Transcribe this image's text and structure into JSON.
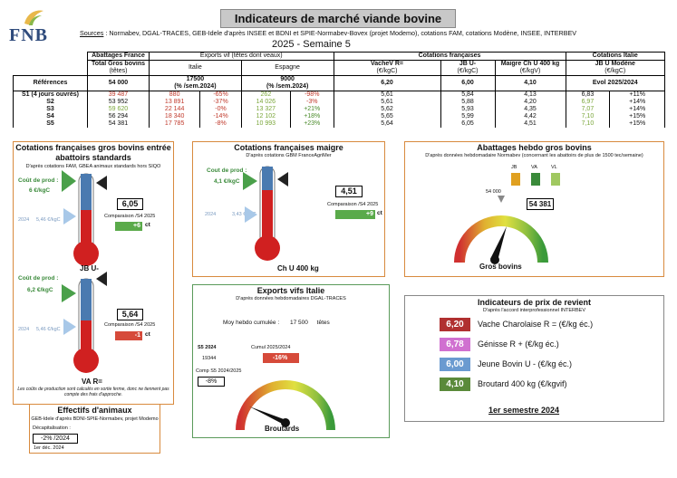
{
  "header": {
    "logo_text": "FNB",
    "title": "Indicateurs de marché viande bovine",
    "sources_label": "Sources",
    "sources_text": " : Normabev, DGAL-TRACES, GEB-Idele d'après INSEE et BDNI et SPIE-Normabev-Bovex (projet Modemo), cotations FAM, cotations Modène, INSEE, INTERBEV",
    "subtitle": "2025 - Semaine 5"
  },
  "table": {
    "group_headers": [
      "Abattages France",
      "Exports vif (têtes dont veaux)",
      "Cotations françaises",
      "Cotations Italie"
    ],
    "col_headers": [
      [
        "Total Gros bovins",
        "(têtes)"
      ],
      [
        "Italie",
        ""
      ],
      [
        "Espagne",
        ""
      ],
      [
        "VacheV R=",
        "(€/kgC)"
      ],
      [
        "JB U-",
        "(€/kgC)"
      ],
      [
        "Maigre Ch U 400 kg",
        "(€/kgV)"
      ],
      [
        "JB U Modène",
        "(€/kgC)"
      ]
    ],
    "ref_label": "Références",
    "ref_values": [
      "54 000",
      "17500",
      "(% /sem.2024)",
      "9000",
      "(% /sem.2024)",
      "6,20",
      "6,00",
      "4,10",
      "Evol 2025/2024"
    ],
    "rows": [
      {
        "label": "S1 (4 jours ouvrés)",
        "abat": "39 487",
        "it": "880",
        "it_pct": "-65%",
        "es": "262",
        "es_pct": "-98%",
        "vache": "5,61",
        "jb": "5,84",
        "maigre": "4,13",
        "mod": "6,83",
        "mod_pct": "+11%"
      },
      {
        "label": "S2",
        "abat": "53 952",
        "it": "13 891",
        "it_pct": "-37%",
        "es": "14 026",
        "es_pct": "-3%",
        "vache": "5,61",
        "jb": "5,88",
        "maigre": "4,20",
        "mod": "6,97",
        "mod_pct": "+14%"
      },
      {
        "label": "S3",
        "abat": "59 620",
        "it": "22 144",
        "it_pct": "-0%",
        "es": "13 327",
        "es_pct": "+21%",
        "vache": "5,62",
        "jb": "5,93",
        "maigre": "4,35",
        "mod": "7,07",
        "mod_pct": "+14%"
      },
      {
        "label": "S4",
        "abat": "56 294",
        "it": "18 340",
        "it_pct": "-14%",
        "es": "12 102",
        "es_pct": "+18%",
        "vache": "5,65",
        "jb": "5,99",
        "maigre": "4,42",
        "mod": "7,10",
        "mod_pct": "+15%"
      },
      {
        "label": "S5",
        "abat": "54 381",
        "it": "17 785",
        "it_pct": "-8%",
        "es": "10 993",
        "es_pct": "+23%",
        "vache": "5,64",
        "jb": "6,05",
        "maigre": "4,51",
        "mod": "7,10",
        "mod_pct": "+15%"
      }
    ]
  },
  "gros_bovins": {
    "title": "Cotations françaises gros bovins entrée abattoirs standards",
    "subtitle": "D'après cotations FAM, GBEA animaux standards hors SIQO",
    "jb": {
      "cout_label": "Coût de prod :",
      "cout_val": "6 €/kgC",
      "ref_year": "2024",
      "ref_val": "5,46 €/kgC",
      "value": "6,05",
      "comp_label": "Comparaison /S4 2025",
      "delta": "+6",
      "delta_unit": "ct",
      "label": "JB U-"
    },
    "va": {
      "cout_label": "Coût de prod :",
      "cout_val": "6,2 €/kgC",
      "ref_year": "2024",
      "ref_val": "5,46 €/kgC",
      "value": "5,64",
      "comp_label": "Comparaison /S4 2025",
      "delta": "-1",
      "delta_unit": "ct",
      "label": "VA R="
    },
    "footnote": "Les coûts de production sont calculés en sortie ferme, donc ne tiennent pas compte des frais d'approche."
  },
  "maigre": {
    "title": "Cotations françaises maigre",
    "subtitle": "D'après cotations GBM FranceAgriMer",
    "cout_label": "Cout de prod :",
    "cout_val": "4,1 €/kgC",
    "ref_year": "2024",
    "ref_val": "3,43 €/kgC",
    "value": "4,51",
    "comp_label": "Comparaison /S4 2025",
    "delta": "+9",
    "delta_unit": "ct",
    "label": "Ch U 400 kg"
  },
  "abattages": {
    "title": "Abattages hebdo gros bovins",
    "subtitle": "D'après données hebdomadaire Normabev (concernant les abattoirs de plus de 1500 tec/semaine)",
    "legend": [
      "JB",
      "VA",
      "VL"
    ],
    "legend_colors": [
      "#e0a020",
      "#3a8a3a",
      "#a0c860"
    ],
    "ref": "54 000",
    "value": "54 381",
    "label": "Gros bovins"
  },
  "exports": {
    "title": "Exports vifs  Italie",
    "subtitle": "D'après données hebdomadaires DGAL-TRACES",
    "moy_label": "Moy hebdo cumulée :",
    "moy_val": "17 500",
    "moy_unit": "têtes",
    "s5_label": "S5 2024",
    "s5_val": "19344",
    "cumul_label": "Cumul 2025/2024",
    "cumul_val": "-16%",
    "comp_label": "Comp S5 2024/2025",
    "comp_val": "-8%",
    "gauge_label": "Broutards"
  },
  "cout": {
    "title": "Indicateurs de prix de revient",
    "subtitle": "D'après l'accord interprofessionnel INTERBEV",
    "items": [
      {
        "value": "6,20",
        "label": "Vache Charolaise R = (€/kg éc.)",
        "color": "#b03030"
      },
      {
        "value": "6,78",
        "label": "Génisse R + (€/kg éc.)",
        "color": "#d070d0"
      },
      {
        "value": "6,00",
        "label": "Jeune Bovin U - (€/kg éc.)",
        "color": "#6a9ad0"
      },
      {
        "value": "4,10",
        "label": "Broutard 400 kg (€/kgvif)",
        "color": "#5a8a3a"
      }
    ],
    "period": "1er semestre 2024"
  },
  "effectifs": {
    "title": "Effectifs d'animaux",
    "subtitle": "GEB-Idele d'après BDNI-SPIE-Normabev, projet Modemo",
    "decap_label": "Décapitalisation :",
    "decap_val": "-2% /2024",
    "date": "1er déc. 2024"
  },
  "colors": {
    "accent_orange": "#d88a3e",
    "green_panel": "#5a9a5a",
    "up": "#5aaa4a",
    "down": "#d64a3a"
  }
}
